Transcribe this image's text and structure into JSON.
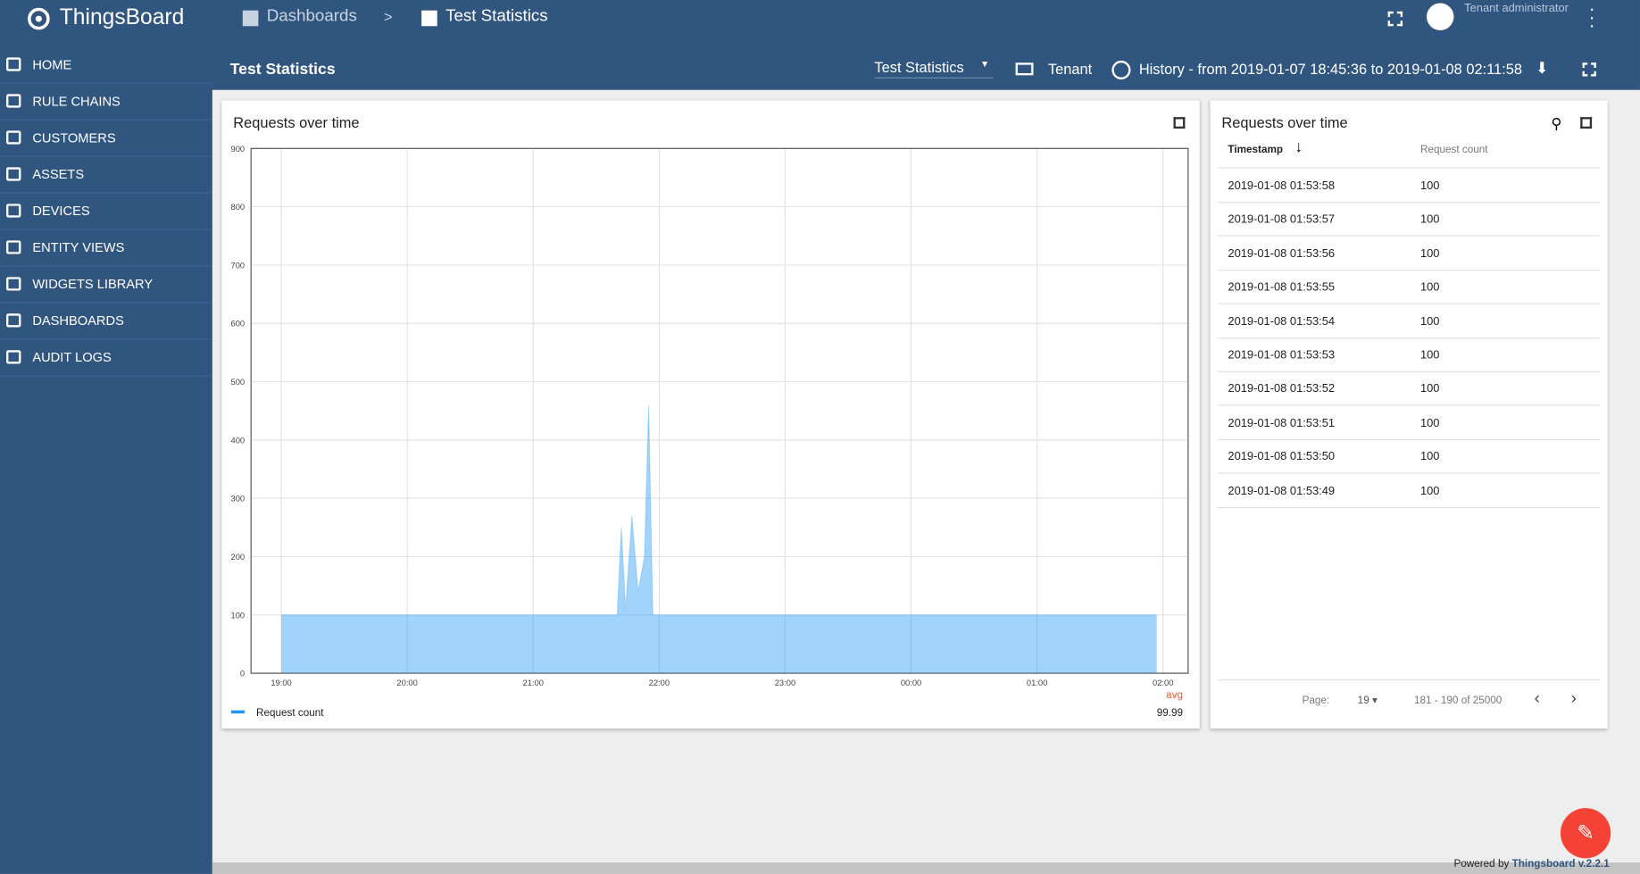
{
  "header": {
    "logo": "ThingsBoard",
    "breadcrumb": [
      "Dashboards",
      ">",
      "Test Statistics"
    ],
    "user": "Tenant administrator"
  },
  "toolbar": {
    "title": "Test Statistics",
    "state": "Test Statistics",
    "entity": "Tenant",
    "timewindow": "History - from 2019-01-07 18:45:36 to 2019-01-08 02:11:58"
  },
  "menu": [
    "HOME",
    "RULE CHAINS",
    "CUSTOMERS",
    "ASSETS",
    "DEVICES",
    "ENTITY VIEWS",
    "WIDGETS LIBRARY",
    "DASHBOARDS",
    "AUDIT LOGS"
  ],
  "chart_data": {
    "type": "area",
    "title": "Requests over time",
    "x": [
      "2019-01-07 19:00",
      "2019-01-07 21:40",
      "2019-01-07 21:42",
      "2019-01-07 21:44",
      "2019-01-07 21:47",
      "2019-01-07 21:50",
      "2019-01-07 21:53",
      "2019-01-07 21:55",
      "2019-01-07 21:57",
      "2019-01-08 01:57"
    ],
    "series": [
      {
        "name": "Request count",
        "color": "#2196f3",
        "values": [
          100,
          100,
          250,
          110,
          270,
          140,
          200,
          460,
          100,
          100
        ]
      }
    ],
    "xlim": [
      "2019-01-07 18:45:36",
      "2019-01-08 02:11:58"
    ],
    "xticks": [
      {
        "value": "2019-01-07 19:00",
        "label": "19:00"
      },
      {
        "value": "2019-01-07 20:00",
        "label": "20:00"
      },
      {
        "value": "2019-01-07 21:00",
        "label": "21:00"
      },
      {
        "value": "2019-01-07 22:00",
        "label": "22:00"
      },
      {
        "value": "2019-01-07 23:00",
        "label": "23:00"
      },
      {
        "value": "2019-01-08 00:00",
        "label": "00:00"
      },
      {
        "value": "2019-01-08 01:00",
        "label": "01:00"
      },
      {
        "value": "2019-01-08 02:00",
        "label": "02:00"
      }
    ],
    "ylim": [
      0,
      900
    ],
    "yticks": [
      0,
      100,
      200,
      300,
      400,
      500,
      600,
      700,
      800,
      900
    ],
    "grid": true,
    "legend": "bottom-left",
    "aggregate_label": "avg",
    "aggregate_value": 99.99
  },
  "table": {
    "title": "Requests over time",
    "columns": [
      "Timestamp",
      "Request count"
    ],
    "rows": [
      [
        "2019-01-08 01:53:58",
        100
      ],
      [
        "2019-01-08 01:53:57",
        100
      ],
      [
        "2019-01-08 01:53:56",
        100
      ],
      [
        "2019-01-08 01:53:55",
        100
      ],
      [
        "2019-01-08 01:53:54",
        100
      ],
      [
        "2019-01-08 01:53:53",
        100
      ],
      [
        "2019-01-08 01:53:52",
        100
      ],
      [
        "2019-01-08 01:53:51",
        100
      ],
      [
        "2019-01-08 01:53:50",
        100
      ],
      [
        "2019-01-08 01:53:49",
        100
      ]
    ]
  },
  "pagination": {
    "label": "Page:",
    "page": 19,
    "range": "181 - 190 of 25000"
  },
  "footer": {
    "prefix": "Powered by",
    "link": "Thingsboard v.2.2.1"
  }
}
